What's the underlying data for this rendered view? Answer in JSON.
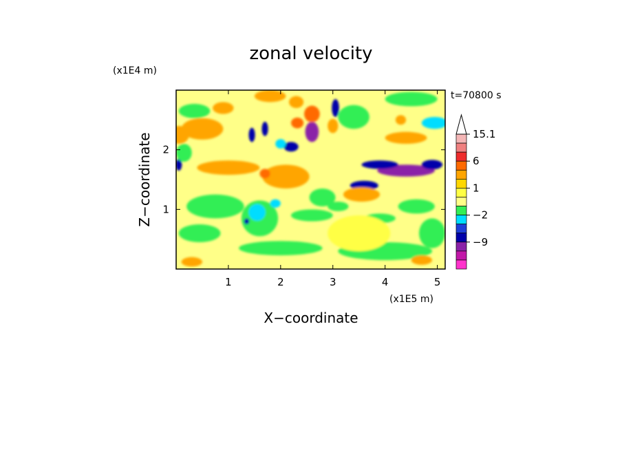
{
  "chart_data": {
    "type": "heatmap",
    "title": "zonal velocity",
    "xlabel": "X−coordinate",
    "ylabel": "Z−coordinate",
    "x_unit": "(x1E5 m)",
    "y_unit": "(x1E4 m)",
    "time_label": "t=70800 s",
    "xlim": [
      0,
      5.15
    ],
    "ylim": [
      0,
      3.0
    ],
    "x_ticks": [
      1,
      2,
      3,
      4,
      5
    ],
    "x_tick_labels": [
      "1",
      "2",
      "3",
      "4",
      "5"
    ],
    "y_ticks": [
      1,
      2
    ],
    "y_tick_labels": [
      "1",
      "2"
    ],
    "background_value": 0.5,
    "colorbar": {
      "levels_top_to_bottom": [
        15.1,
        12,
        9,
        6,
        3,
        2,
        1,
        0,
        -1,
        -2,
        -3,
        -6,
        -9,
        -12
      ],
      "labels": [
        "15.1",
        "6",
        "1",
        "−2",
        "−9"
      ],
      "label_values": [
        15.1,
        6,
        1,
        -2,
        -9
      ],
      "colors_top_to_bottom": [
        "#f4b6b6",
        "#f08080",
        "#ee2c2c",
        "#ff6a00",
        "#ffa500",
        "#ffd700",
        "#ffff44",
        "#ffff88",
        "#33ee55",
        "#00ddff",
        "#1e3fd8",
        "#0000aa",
        "#8b22a8",
        "#c218a8",
        "#ff33cc"
      ]
    },
    "regions": [
      {
        "x": 2.6,
        "y": 2.3,
        "rx": 0.13,
        "ry": 0.17,
        "value": -9
      },
      {
        "x": 2.6,
        "y": 2.6,
        "rx": 0.15,
        "ry": 0.14,
        "value": 8
      },
      {
        "x": 2.3,
        "y": 2.8,
        "rx": 0.14,
        "ry": 0.1,
        "value": 3
      },
      {
        "x": 2.32,
        "y": 2.45,
        "rx": 0.12,
        "ry": 0.09,
        "value": 6
      },
      {
        "x": 2.2,
        "y": 2.05,
        "rx": 0.14,
        "ry": 0.08,
        "value": -4
      },
      {
        "x": 2.0,
        "y": 2.1,
        "rx": 0.1,
        "ry": 0.08,
        "value": -2
      },
      {
        "x": 1.45,
        "y": 2.25,
        "rx": 0.06,
        "ry": 0.12,
        "value": -4
      },
      {
        "x": 1.7,
        "y": 2.35,
        "rx": 0.06,
        "ry": 0.12,
        "value": -4
      },
      {
        "x": 4.4,
        "y": 1.65,
        "rx": 0.55,
        "ry": 0.1,
        "value": -9
      },
      {
        "x": 3.9,
        "y": 1.75,
        "rx": 0.35,
        "ry": 0.07,
        "value": -4
      },
      {
        "x": 4.9,
        "y": 1.75,
        "rx": 0.2,
        "ry": 0.08,
        "value": -4
      },
      {
        "x": 3.6,
        "y": 1.4,
        "rx": 0.27,
        "ry": 0.08,
        "value": -4
      },
      {
        "x": 3.55,
        "y": 1.25,
        "rx": 0.35,
        "ry": 0.12,
        "value": 4
      },
      {
        "x": 2.8,
        "y": 1.2,
        "rx": 0.25,
        "ry": 0.15,
        "value": -1
      },
      {
        "x": 2.1,
        "y": 1.55,
        "rx": 0.45,
        "ry": 0.2,
        "value": 3
      },
      {
        "x": 1.7,
        "y": 1.6,
        "rx": 0.1,
        "ry": 0.08,
        "value": 6
      },
      {
        "x": 1.6,
        "y": 0.85,
        "rx": 0.35,
        "ry": 0.3,
        "value": -1
      },
      {
        "x": 1.55,
        "y": 0.95,
        "rx": 0.16,
        "ry": 0.14,
        "value": -2
      },
      {
        "x": 1.35,
        "y": 0.8,
        "rx": 0.05,
        "ry": 0.05,
        "value": -4
      },
      {
        "x": 1.9,
        "y": 1.1,
        "rx": 0.1,
        "ry": 0.07,
        "value": -2
      },
      {
        "x": 0.5,
        "y": 2.35,
        "rx": 0.4,
        "ry": 0.18,
        "value": 3
      },
      {
        "x": 0.05,
        "y": 2.25,
        "rx": 0.2,
        "ry": 0.15,
        "value": 3
      },
      {
        "x": 1.8,
        "y": 2.9,
        "rx": 0.3,
        "ry": 0.1,
        "value": 3
      },
      {
        "x": 0.9,
        "y": 2.7,
        "rx": 0.2,
        "ry": 0.1,
        "value": 3
      },
      {
        "x": 0.35,
        "y": 2.65,
        "rx": 0.3,
        "ry": 0.12,
        "value": -1
      },
      {
        "x": 4.5,
        "y": 2.85,
        "rx": 0.5,
        "ry": 0.12,
        "value": -1
      },
      {
        "x": 4.95,
        "y": 2.45,
        "rx": 0.25,
        "ry": 0.1,
        "value": -2
      },
      {
        "x": 4.4,
        "y": 2.2,
        "rx": 0.4,
        "ry": 0.1,
        "value": 3
      },
      {
        "x": 3.4,
        "y": 2.55,
        "rx": 0.3,
        "ry": 0.2,
        "value": -1
      },
      {
        "x": 3.05,
        "y": 2.7,
        "rx": 0.07,
        "ry": 0.15,
        "value": -4
      },
      {
        "x": 3.0,
        "y": 2.4,
        "rx": 0.1,
        "ry": 0.12,
        "value": 3
      },
      {
        "x": 4.3,
        "y": 2.5,
        "rx": 0.1,
        "ry": 0.08,
        "value": 3
      },
      {
        "x": 1.0,
        "y": 1.7,
        "rx": 0.6,
        "ry": 0.12,
        "value": 3
      },
      {
        "x": 0.05,
        "y": 1.75,
        "rx": 0.06,
        "ry": 0.1,
        "value": -4
      },
      {
        "x": 0.75,
        "y": 1.05,
        "rx": 0.55,
        "ry": 0.2,
        "value": -1
      },
      {
        "x": 0.45,
        "y": 0.6,
        "rx": 0.4,
        "ry": 0.15,
        "value": -1
      },
      {
        "x": 2.6,
        "y": 0.9,
        "rx": 0.4,
        "ry": 0.1,
        "value": -1
      },
      {
        "x": 3.1,
        "y": 1.05,
        "rx": 0.2,
        "ry": 0.08,
        "value": -1
      },
      {
        "x": 4.6,
        "y": 1.05,
        "rx": 0.35,
        "ry": 0.12,
        "value": -1
      },
      {
        "x": 4.9,
        "y": 0.6,
        "rx": 0.25,
        "ry": 0.25,
        "value": -1
      },
      {
        "x": 3.9,
        "y": 0.85,
        "rx": 0.3,
        "ry": 0.08,
        "value": -1
      },
      {
        "x": 2.0,
        "y": 0.35,
        "rx": 0.8,
        "ry": 0.12,
        "value": -1
      },
      {
        "x": 4.0,
        "y": 0.3,
        "rx": 0.9,
        "ry": 0.15,
        "value": -1
      },
      {
        "x": 3.5,
        "y": 0.6,
        "rx": 0.6,
        "ry": 0.3,
        "value": 1
      },
      {
        "x": 4.7,
        "y": 0.15,
        "rx": 0.2,
        "ry": 0.08,
        "value": 3
      },
      {
        "x": 0.3,
        "y": 0.12,
        "rx": 0.2,
        "ry": 0.08,
        "value": 3
      },
      {
        "x": 1.1,
        "y": 2.05,
        "rx": 0.3,
        "ry": 0.12,
        "value": 0.5
      },
      {
        "x": 0.15,
        "y": 1.95,
        "rx": 0.15,
        "ry": 0.15,
        "value": -1
      }
    ]
  }
}
